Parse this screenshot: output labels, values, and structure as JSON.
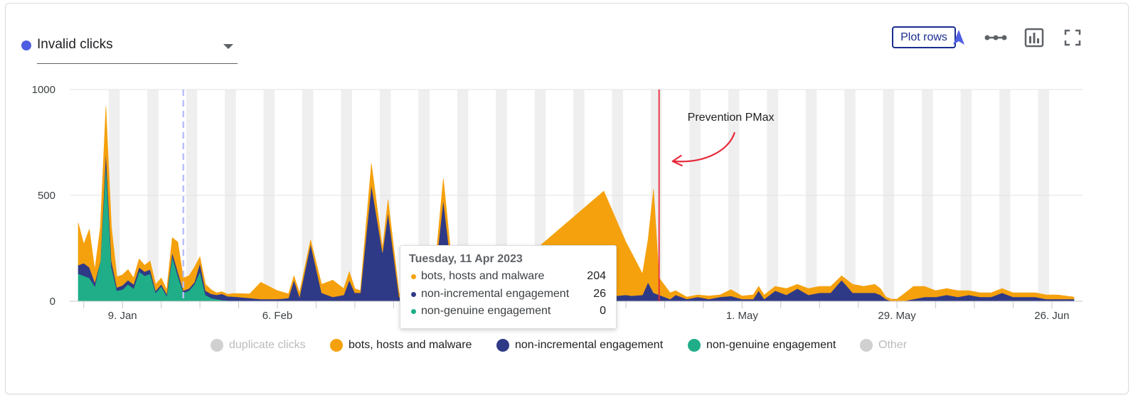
{
  "metric_selector": {
    "label": "Invalid clicks",
    "dot_color": "#4f5ee0"
  },
  "toolbar": {
    "plot_rows_label": "Plot rows",
    "icons": [
      "arrow-up-icon",
      "line-chart-toggle-icon",
      "bar-chart-icon",
      "fullscreen-icon"
    ]
  },
  "annotation": {
    "label": "Prevention PMax"
  },
  "tooltip": {
    "title": "Tuesday, 11 Apr 2023",
    "rows": [
      {
        "name": "bots, hosts and malware",
        "value": "204",
        "color": "#f5a10d"
      },
      {
        "name": "non-incremental engagement",
        "value": "26",
        "color": "#2f3a87"
      },
      {
        "name": "non-genuine engagement",
        "value": "0",
        "color": "#1fae87"
      }
    ]
  },
  "legend": [
    {
      "name": "duplicate clicks",
      "color": "#d0d0d0",
      "active": false
    },
    {
      "name": "bots, hosts and malware",
      "color": "#f5a10d",
      "active": true
    },
    {
      "name": "non-incremental engagement",
      "color": "#2f3a87",
      "active": true
    },
    {
      "name": "non-genuine engagement",
      "color": "#1fae87",
      "active": true
    },
    {
      "name": "Other",
      "color": "#d0d0d0",
      "active": false
    }
  ],
  "chart_data": {
    "type": "area",
    "stacked": true,
    "x_start": "2023-01-01",
    "x_end": "2023-06-30",
    "ylim": [
      0,
      1000
    ],
    "y_ticks": [
      "0",
      "500",
      "1000"
    ],
    "x_ticks": [
      {
        "date": "2023-01-09",
        "label": "9. Jan"
      },
      {
        "date": "2023-02-06",
        "label": "6. Feb"
      },
      {
        "date": "2023-05-01",
        "label": "1. May"
      },
      {
        "date": "2023-05-29",
        "label": "29. May"
      },
      {
        "date": "2023-06-26",
        "label": "26. Jun"
      }
    ],
    "weekend_shading": true,
    "dashed_marker_date": "2023-01-20",
    "annotation_line_date": "2023-04-16",
    "tooltip_date": "2023-04-11",
    "series": [
      {
        "name": "non-genuine engagement",
        "color": "#1fae87",
        "points": [
          [
            "2023-01-01",
            130
          ],
          [
            "2023-01-02",
            120
          ],
          [
            "2023-01-03",
            110
          ],
          [
            "2023-01-04",
            70
          ],
          [
            "2023-01-05",
            190
          ],
          [
            "2023-01-06",
            650
          ],
          [
            "2023-01-07",
            160
          ],
          [
            "2023-01-08",
            50
          ],
          [
            "2023-01-09",
            55
          ],
          [
            "2023-01-10",
            80
          ],
          [
            "2023-01-11",
            60
          ],
          [
            "2023-01-12",
            140
          ],
          [
            "2023-01-13",
            120
          ],
          [
            "2023-01-14",
            130
          ],
          [
            "2023-01-15",
            40
          ],
          [
            "2023-01-16",
            70
          ],
          [
            "2023-01-17",
            25
          ],
          [
            "2023-01-18",
            210
          ],
          [
            "2023-01-19",
            120
          ],
          [
            "2023-01-20",
            40
          ],
          [
            "2023-01-21",
            50
          ],
          [
            "2023-01-22",
            80
          ],
          [
            "2023-01-23",
            140
          ],
          [
            "2023-01-24",
            30
          ],
          [
            "2023-01-25",
            15
          ],
          [
            "2023-01-26",
            10
          ],
          [
            "2023-01-27",
            5
          ],
          [
            "2023-01-28",
            3
          ],
          [
            "2023-01-29",
            2
          ],
          [
            "2023-02-01",
            0
          ],
          [
            "2023-06-30",
            0
          ]
        ]
      },
      {
        "name": "non-incremental engagement",
        "color": "#2f3a87",
        "points": [
          [
            "2023-01-01",
            40
          ],
          [
            "2023-01-02",
            60
          ],
          [
            "2023-01-03",
            50
          ],
          [
            "2023-01-04",
            20
          ],
          [
            "2023-01-05",
            0
          ],
          [
            "2023-01-06",
            60
          ],
          [
            "2023-01-07",
            30
          ],
          [
            "2023-01-08",
            15
          ],
          [
            "2023-01-09",
            20
          ],
          [
            "2023-01-10",
            20
          ],
          [
            "2023-01-11",
            20
          ],
          [
            "2023-01-12",
            20
          ],
          [
            "2023-01-13",
            20
          ],
          [
            "2023-01-14",
            20
          ],
          [
            "2023-01-15",
            10
          ],
          [
            "2023-01-16",
            10
          ],
          [
            "2023-01-17",
            10
          ],
          [
            "2023-01-18",
            20
          ],
          [
            "2023-01-19",
            20
          ],
          [
            "2023-01-20",
            10
          ],
          [
            "2023-01-21",
            10
          ],
          [
            "2023-01-22",
            10
          ],
          [
            "2023-01-23",
            40
          ],
          [
            "2023-01-24",
            20
          ],
          [
            "2023-01-25",
            20
          ],
          [
            "2023-01-26",
            20
          ],
          [
            "2023-01-27",
            30
          ],
          [
            "2023-01-28",
            20
          ],
          [
            "2023-01-29",
            20
          ],
          [
            "2023-02-01",
            15
          ],
          [
            "2023-02-03",
            10
          ],
          [
            "2023-02-06",
            10
          ],
          [
            "2023-02-08",
            15
          ],
          [
            "2023-02-09",
            100
          ],
          [
            "2023-02-10",
            20
          ],
          [
            "2023-02-12",
            270
          ],
          [
            "2023-02-14",
            40
          ],
          [
            "2023-02-16",
            20
          ],
          [
            "2023-02-18",
            30
          ],
          [
            "2023-02-19",
            100
          ],
          [
            "2023-02-20",
            40
          ],
          [
            "2023-02-21",
            40
          ],
          [
            "2023-02-23",
            550
          ],
          [
            "2023-02-25",
            230
          ],
          [
            "2023-02-26",
            420
          ],
          [
            "2023-02-28",
            20
          ],
          [
            "2023-03-01",
            0
          ],
          [
            "2023-03-04",
            0
          ],
          [
            "2023-03-06",
            10
          ],
          [
            "2023-03-08",
            480
          ],
          [
            "2023-03-10",
            30
          ],
          [
            "2023-03-16",
            20
          ],
          [
            "2023-04-06",
            20
          ],
          [
            "2023-04-10",
            30
          ],
          [
            "2023-04-11",
            26
          ],
          [
            "2023-04-13",
            30
          ],
          [
            "2023-04-14",
            90
          ],
          [
            "2023-04-15",
            40
          ],
          [
            "2023-04-16",
            30
          ],
          [
            "2023-04-18",
            10
          ],
          [
            "2023-04-19",
            30
          ],
          [
            "2023-04-21",
            10
          ],
          [
            "2023-04-23",
            20
          ],
          [
            "2023-04-25",
            10
          ],
          [
            "2023-04-27",
            20
          ],
          [
            "2023-04-29",
            25
          ],
          [
            "2023-05-01",
            10
          ],
          [
            "2023-05-03",
            10
          ],
          [
            "2023-05-04",
            50
          ],
          [
            "2023-05-05",
            10
          ],
          [
            "2023-05-07",
            50
          ],
          [
            "2023-05-09",
            30
          ],
          [
            "2023-05-11",
            60
          ],
          [
            "2023-05-13",
            30
          ],
          [
            "2023-05-15",
            40
          ],
          [
            "2023-05-17",
            40
          ],
          [
            "2023-05-19",
            100
          ],
          [
            "2023-05-21",
            40
          ],
          [
            "2023-05-23",
            40
          ],
          [
            "2023-05-25",
            40
          ],
          [
            "2023-05-26",
            30
          ],
          [
            "2023-05-27",
            10
          ],
          [
            "2023-05-28",
            0
          ],
          [
            "2023-05-29",
            0
          ],
          [
            "2023-05-30",
            0
          ],
          [
            "2023-06-01",
            10
          ],
          [
            "2023-06-03",
            20
          ],
          [
            "2023-06-05",
            20
          ],
          [
            "2023-06-07",
            30
          ],
          [
            "2023-06-09",
            20
          ],
          [
            "2023-06-11",
            30
          ],
          [
            "2023-06-13",
            20
          ],
          [
            "2023-06-15",
            20
          ],
          [
            "2023-06-17",
            40
          ],
          [
            "2023-06-19",
            20
          ],
          [
            "2023-06-21",
            20
          ],
          [
            "2023-06-23",
            20
          ],
          [
            "2023-06-25",
            10
          ],
          [
            "2023-06-27",
            10
          ],
          [
            "2023-06-30",
            10
          ]
        ]
      },
      {
        "name": "bots, hosts and malware",
        "color": "#f5a10d",
        "points": [
          [
            "2023-01-01",
            200
          ],
          [
            "2023-01-02",
            90
          ],
          [
            "2023-01-03",
            180
          ],
          [
            "2023-01-04",
            60
          ],
          [
            "2023-01-05",
            160
          ],
          [
            "2023-01-06",
            210
          ],
          [
            "2023-01-07",
            160
          ],
          [
            "2023-01-08",
            50
          ],
          [
            "2023-01-09",
            50
          ],
          [
            "2023-01-10",
            50
          ],
          [
            "2023-01-11",
            30
          ],
          [
            "2023-01-12",
            40
          ],
          [
            "2023-01-13",
            30
          ],
          [
            "2023-01-14",
            40
          ],
          [
            "2023-01-15",
            30
          ],
          [
            "2023-01-16",
            30
          ],
          [
            "2023-01-17",
            20
          ],
          [
            "2023-01-18",
            70
          ],
          [
            "2023-01-19",
            140
          ],
          [
            "2023-01-20",
            60
          ],
          [
            "2023-01-21",
            60
          ],
          [
            "2023-01-22",
            70
          ],
          [
            "2023-01-23",
            30
          ],
          [
            "2023-01-24",
            30
          ],
          [
            "2023-01-25",
            20
          ],
          [
            "2023-01-26",
            10
          ],
          [
            "2023-01-27",
            10
          ],
          [
            "2023-01-28",
            10
          ],
          [
            "2023-01-29",
            15
          ],
          [
            "2023-02-01",
            20
          ],
          [
            "2023-02-03",
            80
          ],
          [
            "2023-02-06",
            40
          ],
          [
            "2023-02-08",
            20
          ],
          [
            "2023-02-09",
            20
          ],
          [
            "2023-02-10",
            20
          ],
          [
            "2023-02-12",
            20
          ],
          [
            "2023-02-14",
            40
          ],
          [
            "2023-02-16",
            80
          ],
          [
            "2023-02-18",
            30
          ],
          [
            "2023-02-19",
            40
          ],
          [
            "2023-02-20",
            20
          ],
          [
            "2023-02-21",
            10
          ],
          [
            "2023-02-23",
            100
          ],
          [
            "2023-02-25",
            20
          ],
          [
            "2023-02-26",
            60
          ],
          [
            "2023-02-28",
            20
          ],
          [
            "2023-03-01",
            20
          ],
          [
            "2023-03-04",
            10
          ],
          [
            "2023-03-06",
            20
          ],
          [
            "2023-03-08",
            100
          ],
          [
            "2023-03-10",
            30
          ],
          [
            "2023-03-16",
            30
          ],
          [
            "2023-04-06",
            500
          ],
          [
            "2023-04-10",
            250
          ],
          [
            "2023-04-11",
            204
          ],
          [
            "2023-04-13",
            100
          ],
          [
            "2023-04-14",
            200
          ],
          [
            "2023-04-15",
            490
          ],
          [
            "2023-04-16",
            80
          ],
          [
            "2023-04-18",
            30
          ],
          [
            "2023-04-19",
            20
          ],
          [
            "2023-04-21",
            10
          ],
          [
            "2023-04-23",
            10
          ],
          [
            "2023-04-25",
            15
          ],
          [
            "2023-04-27",
            10
          ],
          [
            "2023-04-29",
            30
          ],
          [
            "2023-05-01",
            15
          ],
          [
            "2023-05-03",
            20
          ],
          [
            "2023-05-04",
            20
          ],
          [
            "2023-05-05",
            20
          ],
          [
            "2023-05-07",
            20
          ],
          [
            "2023-05-09",
            30
          ],
          [
            "2023-05-11",
            20
          ],
          [
            "2023-05-13",
            30
          ],
          [
            "2023-05-15",
            30
          ],
          [
            "2023-05-17",
            30
          ],
          [
            "2023-05-19",
            20
          ],
          [
            "2023-05-21",
            40
          ],
          [
            "2023-05-23",
            30
          ],
          [
            "2023-05-25",
            40
          ],
          [
            "2023-05-26",
            30
          ],
          [
            "2023-05-27",
            10
          ],
          [
            "2023-05-28",
            10
          ],
          [
            "2023-05-29",
            10
          ],
          [
            "2023-05-30",
            30
          ],
          [
            "2023-06-01",
            60
          ],
          [
            "2023-06-03",
            50
          ],
          [
            "2023-06-05",
            30
          ],
          [
            "2023-06-07",
            30
          ],
          [
            "2023-06-09",
            30
          ],
          [
            "2023-06-11",
            20
          ],
          [
            "2023-06-13",
            20
          ],
          [
            "2023-06-15",
            20
          ],
          [
            "2023-06-17",
            20
          ],
          [
            "2023-06-19",
            20
          ],
          [
            "2023-06-21",
            20
          ],
          [
            "2023-06-23",
            20
          ],
          [
            "2023-06-25",
            20
          ],
          [
            "2023-06-27",
            20
          ],
          [
            "2023-06-30",
            10
          ]
        ]
      }
    ]
  }
}
